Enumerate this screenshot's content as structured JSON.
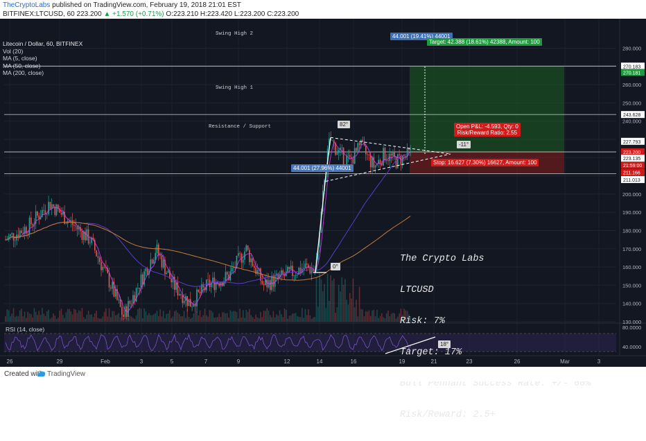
{
  "header": {
    "publisher": "TheCryptoLabs",
    "published_text": "published on TradingView.com, February 19, 2018 21:01 EST",
    "symbol_line": "BITFINEX:LTCUSD, 60  223.200",
    "change": "▲ +1.570 (+0.71%)",
    "ohlc": "O:223.210 H:223.420 L:223.200 C:223.200"
  },
  "legend": {
    "title": "Litecoin / Dollar, 60, BITFINEX",
    "items": [
      "Vol (20)",
      "MA (5, close)",
      "MA (50, close)",
      "MA (200, close)"
    ]
  },
  "annotations": {
    "swing_high_2": "Swing High 2",
    "swing_high_1": "Swing High 1",
    "resistance": "Resistance / Support",
    "pole_measure": "44.001 (27.96%) 44001",
    "proj_measure": "44.001 (19.41%) 44001",
    "target": "Target: 42.388 (18.61%) 42388, Amount: 100",
    "open_pl": "Open P&L: -4.593, Qty: 0",
    "rr_ratio": "Risk/Reward Ratio: 2.55",
    "stop": "Stop: 16.627 (7.30%) 16627, Amount: 100",
    "angle_82": "82°",
    "angle_0": "0°",
    "angle_neg11": "-11°",
    "angle_18": "18°"
  },
  "notes": {
    "lines": [
      "The Crypto Labs",
      "LTCUSD",
      "Risk: 7%",
      "Target: 17%",
      "Bull Pennant Success Rate: +/- 60%",
      "Risk/Reward: 2.5+"
    ]
  },
  "rsi": {
    "label": "RSI (14, close)",
    "ticks": [
      "80.0000",
      "40.0000"
    ]
  },
  "colors": {
    "background": "#131722",
    "up": "#26a69a",
    "down": "#ef5350",
    "ma5": "#e040fb",
    "ma50": "#5b3cc4",
    "ma200": "#c77d3a",
    "target_zone": "#1b5e20",
    "stop_zone": "#7f1d1d",
    "rsi": "#7b52c9"
  },
  "footer": {
    "created_with": "Created with",
    "brand": "TradingView"
  },
  "chart_data": {
    "type": "candlestick",
    "title": "Litecoin / Dollar, 60, BITFINEX",
    "y_ticks": [
      130,
      140,
      150,
      160,
      170,
      180,
      190,
      200,
      210,
      220,
      230,
      240,
      250,
      260,
      270,
      280
    ],
    "y_tick_labels": [
      "130.000",
      "140.000",
      "150.000",
      "160.000",
      "170.000",
      "180.000",
      "190.000",
      "200.000",
      "210.000",
      "220.000",
      "230.000",
      "240.000",
      "250.000",
      "260.000",
      "270.000",
      "280.000"
    ],
    "ylim": [
      124,
      287
    ],
    "x_tick_labels": [
      "26",
      "29",
      "Feb",
      "3",
      "5",
      "7",
      "9",
      "12",
      "14",
      "16",
      "19",
      "21",
      "23",
      "26",
      "Mar",
      "3"
    ],
    "price_labels": [
      {
        "value": 270.183,
        "text": "270.183",
        "style": "line"
      },
      {
        "value": 270.181,
        "text": "270.181",
        "style": "green"
      },
      {
        "value": 243.628,
        "text": "243.628",
        "style": "line"
      },
      {
        "value": 227.793,
        "text": "227.793",
        "style": "line"
      },
      {
        "value": 223.2,
        "text": "223.200",
        "style": "red"
      },
      {
        "value": 219.0,
        "text": "21:59:00",
        "style": "red"
      },
      {
        "value": 223.135,
        "text": "223.135",
        "style": "line"
      },
      {
        "value": 211.166,
        "text": "211.166",
        "style": "red"
      },
      {
        "value": 211.013,
        "text": "211.013",
        "style": "line"
      }
    ],
    "horizontal_levels": [
      270.183,
      243.628,
      223.135,
      211.166
    ],
    "key_points": {
      "pole_bottom": 157.0,
      "pole_top": 231.0,
      "current": 223.2,
      "target": 270.181,
      "stop": 211.166
    },
    "series": [
      {
        "name": "MA (5, close)",
        "color": "#e040fb"
      },
      {
        "name": "MA (50, close)",
        "color": "#5b3cc4"
      },
      {
        "name": "MA (200, close)",
        "color": "#c77d3a"
      }
    ]
  }
}
